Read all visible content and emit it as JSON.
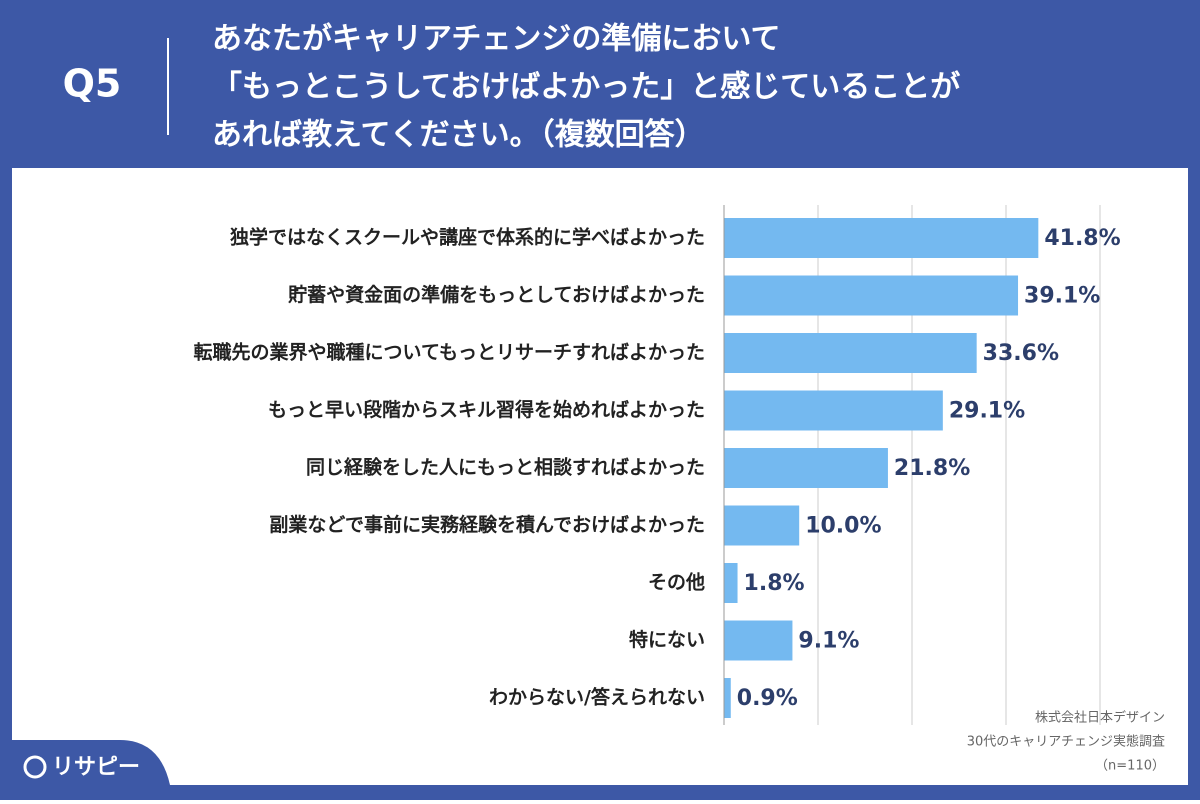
{
  "chart_data": {
    "type": "hbar",
    "question_number": "Q5",
    "title_lines": [
      "あなたがキャリアチェンジの準備において",
      "「もっとこうしておけばよかった」と感じていることが",
      "あれば教えてください。（複数回答）"
    ],
    "categories": [
      "独学ではなくスクールや講座で体系的に学べばよかった",
      "貯蓄や資金面の準備をもっとしておけばよかった",
      "転職先の業界や職種についてもっとリサーチすればよかった",
      "もっと早い段階からスキル習得を始めればよかった",
      "同じ経験をした人にもっと相談すればよかった",
      "副業などで事前に実務経験を積んでおけばよかった",
      "その他",
      "特にない",
      "わからない/答えられない"
    ],
    "values": [
      41.8,
      39.1,
      33.6,
      29.1,
      21.8,
      10.0,
      1.8,
      9.1,
      0.9
    ],
    "value_labels": [
      "41.8%",
      "39.1%",
      "33.6%",
      "29.1%",
      "21.8%",
      "10.0%",
      "1.8%",
      "9.1%",
      "0.9%"
    ],
    "color": "#74b9f0",
    "xlim": [
      0,
      50
    ],
    "xticks": [
      0,
      12.5,
      25,
      37.5,
      50
    ],
    "grid": true,
    "notes": [
      "株式会社日本デザイン",
      "30代のキャリアチェンジ実態調査",
      "（n=110）"
    ],
    "brand": "リサピー"
  }
}
